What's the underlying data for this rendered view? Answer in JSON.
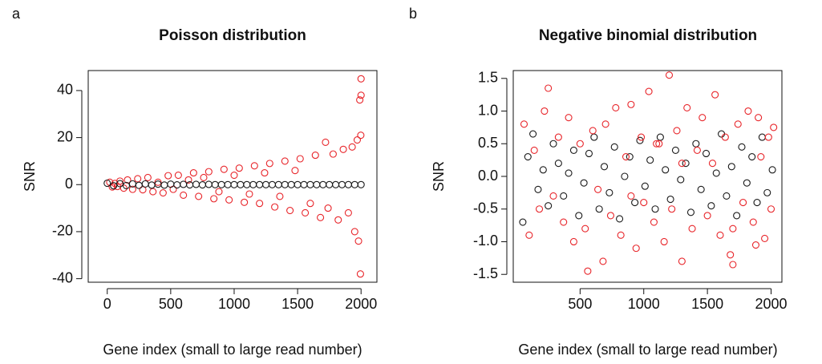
{
  "chart_data": [
    {
      "type": "scatter",
      "panel_label": "a",
      "title": "Poisson distribution",
      "xlabel": "Gene index (small to large read number)",
      "ylabel": "SNR",
      "xlim": [
        -150,
        2125
      ],
      "ylim": [
        -41.5,
        48.5
      ],
      "xticks": [
        0,
        500,
        1000,
        1500,
        2000
      ],
      "yticks": [
        -40,
        -20,
        0,
        20,
        40
      ],
      "series": [
        {
          "color": "#e8252a",
          "x": [
            20,
            40,
            60,
            80,
            100,
            130,
            160,
            200,
            240,
            280,
            320,
            360,
            400,
            440,
            480,
            520,
            560,
            600,
            640,
            680,
            720,
            760,
            800,
            840,
            880,
            920,
            960,
            1000,
            1040,
            1080,
            1120,
            1160,
            1200,
            1240,
            1280,
            1320,
            1360,
            1400,
            1440,
            1480,
            1520,
            1560,
            1600,
            1640,
            1680,
            1720,
            1740,
            1780,
            1820,
            1860,
            1900,
            1930,
            1950,
            1970,
            1980,
            1990,
            1995,
            2000,
            2000,
            1998
          ],
          "values": [
            1,
            -1,
            0.5,
            -0.8,
            1.5,
            -1.5,
            2,
            -2,
            2.5,
            -2.2,
            3,
            -3,
            1,
            -3.5,
            3.8,
            -2,
            4,
            -4.5,
            2,
            5,
            -5,
            3,
            5.5,
            -6,
            -3,
            6.5,
            -6.5,
            4,
            7,
            -7.5,
            -4,
            8,
            -8,
            5,
            9,
            -9.5,
            -5,
            10,
            -11,
            6,
            11,
            -12,
            -8,
            12.5,
            -14,
            18,
            -10,
            13,
            -15,
            15,
            -12,
            16,
            -20,
            19,
            -24,
            36,
            -38,
            45,
            38,
            21
          ]
        },
        {
          "color": "#1a1a1a",
          "x": [
            0,
            50,
            100,
            150,
            200,
            250,
            300,
            350,
            400,
            450,
            500,
            550,
            600,
            650,
            700,
            750,
            800,
            850,
            900,
            950,
            1000,
            1050,
            1100,
            1150,
            1200,
            1250,
            1300,
            1350,
            1400,
            1450,
            1500,
            1550,
            1600,
            1650,
            1700,
            1750,
            1800,
            1850,
            1900,
            1950,
            2000
          ],
          "values": [
            0.6,
            -0.5,
            0.4,
            -0.4,
            0.3,
            -0.3,
            0.3,
            -0.2,
            0.2,
            -0.2,
            0.2,
            -0.1,
            0.1,
            -0.1,
            0.1,
            -0.1,
            0.1,
            0,
            0,
            0,
            0,
            0,
            0,
            0,
            0,
            0,
            0,
            0,
            0,
            0,
            0,
            0,
            0,
            0,
            0,
            0,
            0,
            0,
            0,
            0,
            0
          ]
        }
      ]
    },
    {
      "type": "scatter",
      "panel_label": "b",
      "title": "Negative binomial distribution",
      "xlabel": "Gene index (small to large read number)",
      "ylabel": "SNR",
      "xlim": [
        -25,
        2085
      ],
      "ylim": [
        -1.62,
        1.62
      ],
      "xticks": [
        500,
        1000,
        1500,
        2000
      ],
      "yticks": [
        -1.5,
        {
          "value": -1,
          "label": "-1.0"
        },
        -0.5,
        {
          "value": 0,
          "label": "0.0"
        },
        0.5,
        {
          "value": 1,
          "label": "1.0"
        },
        1.5
      ],
      "series": [
        {
          "color": "#1a1a1a",
          "x": [
            50,
            90,
            130,
            170,
            210,
            250,
            290,
            330,
            370,
            410,
            450,
            490,
            530,
            570,
            610,
            650,
            690,
            730,
            770,
            810,
            850,
            890,
            930,
            970,
            1010,
            1050,
            1090,
            1130,
            1170,
            1210,
            1250,
            1290,
            1330,
            1370,
            1410,
            1450,
            1490,
            1530,
            1570,
            1610,
            1650,
            1690,
            1730,
            1770,
            1810,
            1850,
            1890,
            1930,
            1970,
            2010
          ],
          "values": [
            -0.7,
            0.3,
            0.65,
            -0.2,
            0.1,
            -0.45,
            0.5,
            0.2,
            -0.3,
            0.05,
            0.4,
            -0.6,
            -0.1,
            0.35,
            0.6,
            -0.5,
            0.15,
            -0.25,
            0.45,
            -0.65,
            0.0,
            0.3,
            -0.4,
            0.55,
            -0.15,
            0.25,
            -0.5,
            0.6,
            0.1,
            -0.35,
            0.4,
            -0.05,
            0.2,
            -0.55,
            0.5,
            -0.2,
            0.35,
            -0.45,
            0.05,
            0.65,
            -0.3,
            0.15,
            -0.6,
            0.45,
            -0.1,
            0.3,
            -0.4,
            0.6,
            -0.25,
            0.1
          ]
        },
        {
          "color": "#e8252a",
          "x": [
            60,
            100,
            140,
            180,
            220,
            250,
            290,
            330,
            370,
            410,
            450,
            500,
            540,
            560,
            600,
            640,
            680,
            700,
            740,
            780,
            820,
            860,
            900,
            940,
            980,
            1000,
            1040,
            1080,
            1120,
            1160,
            1200,
            1220,
            1260,
            1300,
            1340,
            1380,
            1420,
            1460,
            1500,
            1540,
            1560,
            1600,
            1640,
            1680,
            1700,
            1740,
            1780,
            1820,
            1860,
            1880,
            1900,
            1920,
            1950,
            1980,
            2000,
            2020,
            1300,
            900,
            1100,
            1700
          ],
          "values": [
            0.8,
            -0.9,
            0.4,
            -0.5,
            1.0,
            1.35,
            -0.3,
            0.6,
            -0.7,
            0.9,
            -1.0,
            0.5,
            -0.8,
            -1.45,
            0.7,
            -0.2,
            -1.3,
            0.8,
            -0.6,
            1.05,
            -0.9,
            0.3,
            1.1,
            -1.1,
            0.6,
            -0.4,
            1.3,
            -0.7,
            0.5,
            -1.0,
            1.55,
            -0.5,
            0.7,
            -1.3,
            1.05,
            -0.8,
            0.4,
            0.9,
            -0.6,
            0.2,
            1.25,
            -0.9,
            0.6,
            -1.2,
            -1.35,
            0.8,
            -0.4,
            1.0,
            -0.7,
            -1.05,
            0.9,
            0.3,
            -0.95,
            0.6,
            -0.5,
            0.75,
            0.2,
            -0.3,
            0.5,
            -0.8
          ]
        }
      ]
    }
  ]
}
